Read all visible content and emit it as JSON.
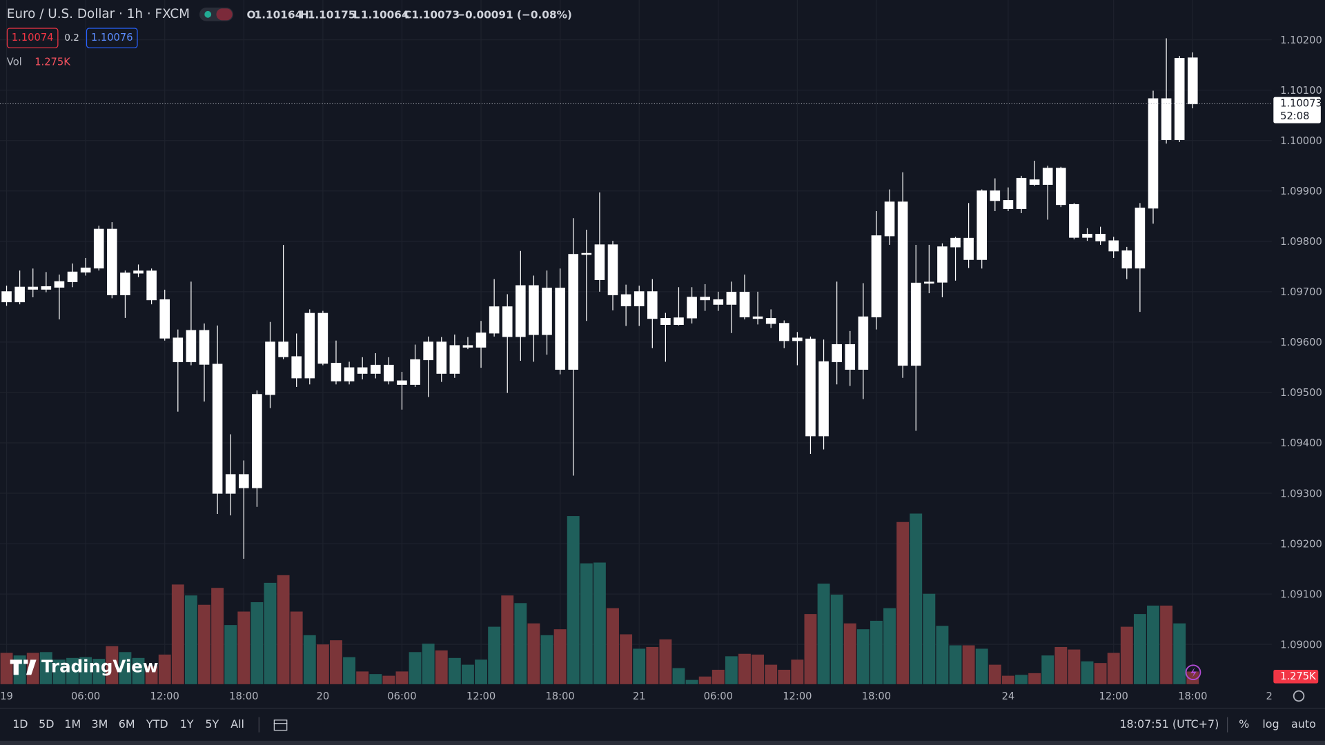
{
  "header": {
    "symbol": "Euro / U.S. Dollar · 1h · FXCM",
    "ohlc": [
      {
        "label": "O",
        "value": 1.10164
      },
      {
        "label": "H",
        "value": 1.10175
      },
      {
        "label": "L",
        "value": 1.10064
      },
      {
        "label": "C",
        "value": 1.10073
      }
    ],
    "change": "−0.00091 (−0.08%)",
    "sell": 1.10074,
    "spread": 0.2,
    "buy": 1.10076,
    "volume_name": "Vol",
    "volume_value": "1.275K"
  },
  "chart_data": {
    "type": "candlestick",
    "open": [
      1.097,
      1.0968,
      1.09709,
      1.09705,
      1.09709,
      1.0972,
      1.09739,
      1.09747,
      1.09824,
      1.09694,
      1.09737,
      1.09741,
      1.09684,
      1.09608,
      1.09561,
      1.09623,
      1.09556,
      1.093,
      1.09337,
      1.09311,
      1.09496,
      1.096,
      1.09571,
      1.09529,
      1.09657,
      1.09558,
      1.09523,
      1.09549,
      1.09538,
      1.09554,
      1.09523,
      1.09516,
      1.09565,
      1.096,
      1.09538,
      1.0959,
      1.0959,
      1.09618,
      1.0967,
      1.09611,
      1.09712,
      1.09615,
      1.09707,
      1.09546,
      1.09774,
      1.09724,
      1.09793,
      1.09694,
      1.09672,
      1.097,
      1.09647,
      1.09635,
      1.09648,
      1.09689,
      1.09684,
      1.09675,
      1.09699,
      1.0965,
      1.09647,
      1.09637,
      1.09608,
      1.09606,
      1.09414,
      1.09561,
      1.09595,
      1.09546,
      1.0965,
      1.09811,
      1.09878,
      1.09554,
      1.09717,
      1.09719,
      1.09789,
      1.09806,
      1.09764,
      1.099,
      1.09881,
      1.09865,
      1.09922,
      1.09913,
      1.09945,
      1.09873,
      1.09808,
      1.09814,
      1.09801,
      1.09781,
      1.09747,
      1.09866,
      1.10083,
      1.10002,
      1.10164
    ],
    "high": [
      1.09712,
      1.09742,
      1.09746,
      1.09739,
      1.09734,
      1.09756,
      1.09767,
      1.09831,
      1.09838,
      1.09742,
      1.09754,
      1.09746,
      1.09704,
      1.09625,
      1.0972,
      1.09637,
      1.09633,
      1.09417,
      1.09365,
      1.09504,
      1.0964,
      1.09793,
      1.09617,
      1.09665,
      1.09662,
      1.09603,
      1.09561,
      1.0957,
      1.09578,
      1.0957,
      1.09541,
      1.09595,
      1.09611,
      1.0961,
      1.09615,
      1.0961,
      1.09642,
      1.09725,
      1.09695,
      1.09781,
      1.09732,
      1.09742,
      1.09746,
      1.09846,
      1.09823,
      1.09897,
      1.09801,
      1.09714,
      1.09712,
      1.09725,
      1.09658,
      1.09709,
      1.09709,
      1.09715,
      1.097,
      1.0972,
      1.09734,
      1.097,
      1.09665,
      1.09643,
      1.0962,
      1.09611,
      1.09605,
      1.0972,
      1.09622,
      1.09717,
      1.0986,
      1.09903,
      1.09937,
      1.09793,
      1.09793,
      1.09796,
      1.09809,
      1.09876,
      1.09903,
      1.09925,
      1.09907,
      1.0993,
      1.0996,
      1.0995,
      1.09948,
      1.09876,
      1.09826,
      1.09829,
      1.09809,
      1.09789,
      1.09876,
      1.10099,
      1.10203,
      1.10168,
      1.10175
    ],
    "low": [
      1.09672,
      1.09675,
      1.09689,
      1.09699,
      1.09645,
      1.09709,
      1.09732,
      1.09742,
      1.09687,
      1.09648,
      1.09729,
      1.09675,
      1.09603,
      1.09462,
      1.09554,
      1.09482,
      1.09259,
      1.09256,
      1.0917,
      1.09273,
      1.09469,
      1.09566,
      1.09511,
      1.09516,
      1.09554,
      1.09516,
      1.09516,
      1.09526,
      1.09528,
      1.09516,
      1.09466,
      1.09511,
      1.09491,
      1.09521,
      1.09529,
      1.09586,
      1.09549,
      1.09611,
      1.09499,
      1.09563,
      1.09561,
      1.09575,
      1.09536,
      1.09335,
      1.09642,
      1.097,
      1.09663,
      1.09632,
      1.09632,
      1.09588,
      1.09561,
      1.09633,
      1.09637,
      1.09662,
      1.09662,
      1.09618,
      1.09645,
      1.09635,
      1.09628,
      1.09588,
      1.09554,
      1.09378,
      1.09387,
      1.09516,
      1.09513,
      1.09487,
      1.09625,
      1.09793,
      1.09529,
      1.09424,
      1.09697,
      1.09689,
      1.09722,
      1.09747,
      1.09746,
      1.0986,
      1.0986,
      1.09856,
      1.0991,
      1.09843,
      1.09868,
      1.09804,
      1.09801,
      1.09793,
      1.09767,
      1.09725,
      1.0966,
      1.09835,
      1.09994,
      1.09997,
      1.10064
    ],
    "close": [
      1.0968,
      1.09709,
      1.09705,
      1.0971,
      1.0972,
      1.09739,
      1.09747,
      1.09824,
      1.09694,
      1.09737,
      1.09741,
      1.09684,
      1.09608,
      1.09561,
      1.09623,
      1.09556,
      1.093,
      1.09337,
      1.09311,
      1.09496,
      1.096,
      1.09571,
      1.09529,
      1.09657,
      1.09558,
      1.09523,
      1.09549,
      1.09538,
      1.09554,
      1.09523,
      1.09516,
      1.09565,
      1.096,
      1.09538,
      1.09593,
      1.09593,
      1.09618,
      1.0967,
      1.09611,
      1.09712,
      1.09615,
      1.09707,
      1.09546,
      1.09774,
      1.09776,
      1.09793,
      1.09694,
      1.09672,
      1.097,
      1.09647,
      1.09635,
      1.09648,
      1.09689,
      1.09684,
      1.09675,
      1.09699,
      1.0965,
      1.09647,
      1.09637,
      1.09603,
      1.09603,
      1.09414,
      1.09561,
      1.09595,
      1.09546,
      1.0965,
      1.09811,
      1.09878,
      1.09554,
      1.09717,
      1.09719,
      1.09789,
      1.09806,
      1.09764,
      1.099,
      1.09881,
      1.09865,
      1.09925,
      1.09913,
      1.09945,
      1.09873,
      1.09808,
      1.09814,
      1.09801,
      1.09781,
      1.09747,
      1.09866,
      1.10083,
      1.10002,
      1.10163,
      1.10073
    ],
    "volume": [
      3150,
      2890,
      3150,
      3230,
      2470,
      2640,
      2720,
      2550,
      3830,
      3230,
      2640,
      1790,
      2980,
      10030,
      8930,
      7990,
      9690,
      5950,
      7310,
      8250,
      10200,
      10970,
      7310,
      4930,
      4000,
      4420,
      2720,
      1280,
      1020,
      850,
      1280,
      3230,
      4080,
      3400,
      2640,
      1960,
      2470,
      5780,
      8930,
      8160,
      6120,
      4930,
      5530,
      16920,
      12160,
      12240,
      7650,
      5020,
      3570,
      3740,
      4510,
      1620,
      430,
      770,
      1450,
      2810,
      3060,
      2980,
      1960,
      1450,
      2470,
      7060,
      10120,
      9010,
      6120,
      5530,
      6380,
      7650,
      16320,
      17170,
      9100,
      5870,
      3910,
      3910,
      3570,
      1960,
      850,
      940,
      1110,
      2890,
      3740,
      3490,
      2300,
      2130,
      3150,
      5780,
      7060,
      7910,
      7910,
      6120,
      1275
    ],
    "xlim": [
      -0.5,
      96
    ],
    "xticks": [
      {
        "value": 0,
        "label": "19"
      },
      {
        "value": 6,
        "label": "06:00"
      },
      {
        "value": 12,
        "label": "12:00"
      },
      {
        "value": 18,
        "label": "18:00"
      },
      {
        "value": 24,
        "label": "20"
      },
      {
        "value": 30,
        "label": "06:00"
      },
      {
        "value": 36,
        "label": "12:00"
      },
      {
        "value": 42,
        "label": "18:00"
      },
      {
        "value": 48,
        "label": "21"
      },
      {
        "value": 54,
        "label": "06:00"
      },
      {
        "value": 60,
        "label": "12:00"
      },
      {
        "value": 66,
        "label": "18:00"
      },
      {
        "value": 76,
        "label": "24"
      },
      {
        "value": 84,
        "label": "12:00"
      },
      {
        "value": 90,
        "label": "18:00"
      }
    ],
    "ylim": [
      1.08921,
      1.10279
    ],
    "yticks": [
      {
        "value": 1.102,
        "label": "1.10200"
      },
      {
        "value": 1.101,
        "label": "1.10100"
      },
      {
        "value": 1.1,
        "label": "1.10000"
      },
      {
        "value": 1.099,
        "label": "1.09900"
      },
      {
        "value": 1.098,
        "label": "1.09800"
      },
      {
        "value": 1.097,
        "label": "1.09700"
      },
      {
        "value": 1.096,
        "label": "1.09600"
      },
      {
        "value": 1.095,
        "label": "1.09500"
      },
      {
        "value": 1.094,
        "label": "1.09400"
      },
      {
        "value": 1.093,
        "label": "1.09300"
      },
      {
        "value": 1.092,
        "label": "1.09200"
      },
      {
        "value": 1.091,
        "label": "1.09100"
      },
      {
        "value": 1.09,
        "label": "1.09000"
      }
    ],
    "grid": true,
    "up_color": "#ffffff",
    "down_color": "#ffffff",
    "volume_up_color": "#1f5f5b",
    "volume_down_color": "#7b3539",
    "last_price": 1.10073,
    "countdown": "52:08",
    "last_volume_label": "1.275K",
    "axis_corner": "2"
  },
  "logo": "TradingView",
  "footer": {
    "ranges": [
      "1D",
      "5D",
      "1M",
      "3M",
      "6M",
      "YTD",
      "1Y",
      "5Y",
      "All"
    ],
    "clock": "18:07:51 (UTC+7)",
    "options": [
      "%",
      "log",
      "auto"
    ]
  }
}
